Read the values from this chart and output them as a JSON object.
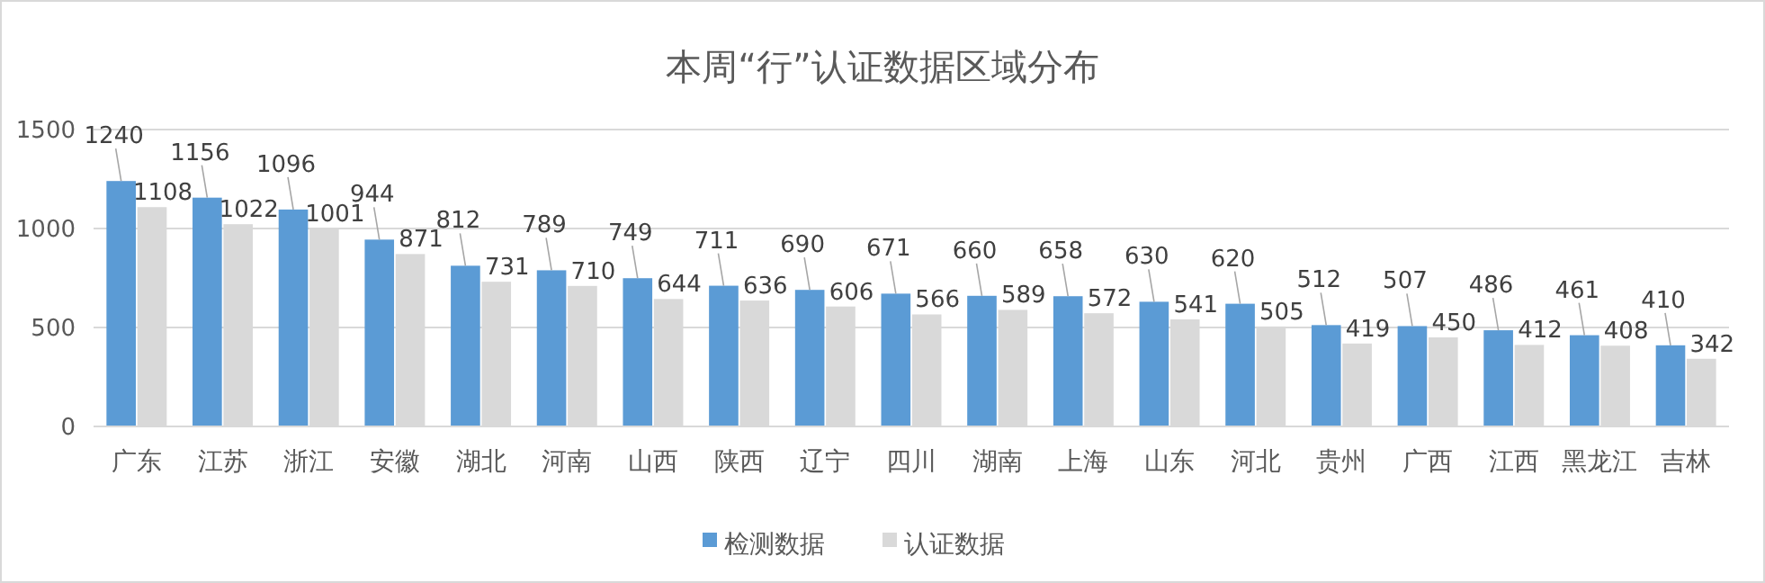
{
  "chart_data": {
    "type": "bar",
    "title": "本周“行”认证数据区域分布",
    "categories": [
      "广东",
      "江苏",
      "浙江",
      "安徽",
      "湖北",
      "河南",
      "山西",
      "陕西",
      "辽宁",
      "四川",
      "湖南",
      "上海",
      "山东",
      "河北",
      "贵州",
      "广西",
      "江西",
      "黑龙江",
      "吉林"
    ],
    "series": [
      {
        "name": "检测数据",
        "color": "#5b9bd5",
        "values": [
          1240,
          1156,
          1096,
          944,
          812,
          789,
          749,
          711,
          690,
          671,
          660,
          658,
          630,
          620,
          512,
          507,
          486,
          461,
          410
        ]
      },
      {
        "name": "认证数据",
        "color": "#d9d9d9",
        "values": [
          1108,
          1022,
          1001,
          871,
          731,
          710,
          644,
          636,
          606,
          566,
          589,
          572,
          541,
          505,
          419,
          450,
          412,
          408,
          342
        ]
      }
    ],
    "ylim": [
      0,
      1500
    ],
    "yticks": [
      0,
      500,
      1000,
      1500
    ],
    "grid": "y",
    "legend": "bottom",
    "data_labels": true
  }
}
